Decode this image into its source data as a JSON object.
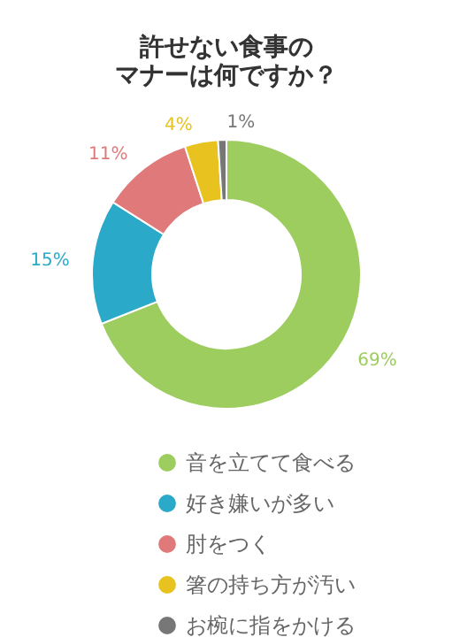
{
  "chart_data": {
    "type": "donut",
    "title": "許せない食事のマナーは何ですか？",
    "categories": [
      "音を立てて食べる",
      "好き嫌いが多い",
      "肘をつく",
      "箸の持ち方が汚い",
      "お椀に指をかける"
    ],
    "values": [
      69,
      15,
      11,
      4,
      1
    ],
    "value_labels": [
      "69%",
      "15%",
      "11%",
      "4%",
      "1%"
    ],
    "colors": [
      "#9dcc5f",
      "#2ba9c8",
      "#e07a7a",
      "#e8c21f",
      "#777777"
    ],
    "legend": "bottom"
  }
}
